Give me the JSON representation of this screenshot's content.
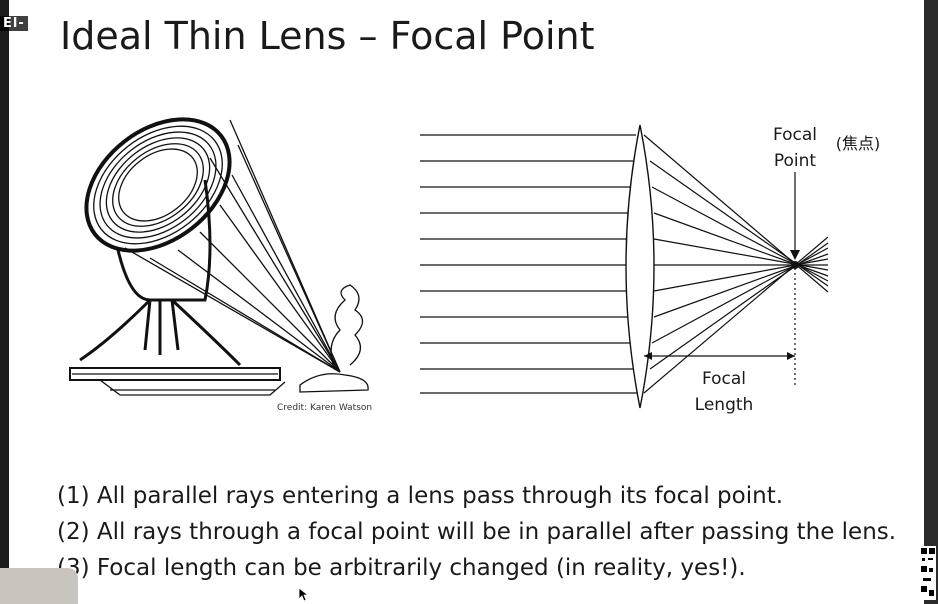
{
  "slide": {
    "overlay_label": "El-",
    "title": "Ideal Thin Lens – Focal Point",
    "credit": "Credit: Karen Watson"
  },
  "diagram": {
    "focal_point_label_line1": "Focal",
    "focal_point_label_line2": "Point",
    "focal_point_label_cjk": "(焦点)",
    "focal_length_label_line1": "Focal",
    "focal_length_label_line2": "Length"
  },
  "bullets": [
    "(1) All parallel rays entering a lens pass through its focal point.",
    "(2) All rays through a focal point will be in parallel after passing the lens.",
    "(3) Focal length can be arbitrarily changed (in reality, yes!)."
  ]
}
